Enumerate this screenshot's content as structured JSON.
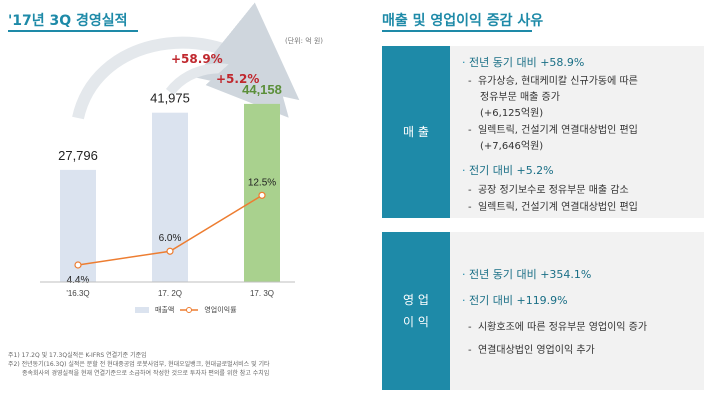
{
  "left": {
    "title": "'17년 3Q 경영실적",
    "unit": "(단위: 억 원)",
    "footnotes": [
      "주1) 17.2Q 및 17.3Q실적은 K-IFRS 연결기준 기준임",
      "주2) 전년동기(16.3Q) 실적은 분할 전 현대중공업 로봇사업부, 현대오일뱅크, 현대글로벌서비스 및 기타",
      "종속회사의 경영실적을 현재 연결기준으로 소급하여 작성한 것으로 투자자 편의를 위한 참고 수치임"
    ]
  },
  "chart_data": {
    "type": "bar",
    "categories": [
      "'16.3Q",
      "17. 2Q",
      "17. 3Q"
    ],
    "series": [
      {
        "name": "매출액",
        "values": [
          27796,
          41975,
          44158
        ],
        "labels": [
          "27,796",
          "41,975",
          "44,158"
        ]
      },
      {
        "name": "영업이익률",
        "values": [
          4.4,
          6.0,
          12.5
        ],
        "labels": [
          "4.4%",
          "6.0%",
          "12.5%"
        ]
      }
    ],
    "growth_labels": [
      "+58.9%",
      "+5.2%"
    ],
    "colors": {
      "bar": "#dbe3ef",
      "bar_highlight": "#a9d18e",
      "line": "#ed7d31",
      "growth": "#c0282e",
      "last_value": "#5b8f3a"
    }
  },
  "right": {
    "title": "매출 및 영업이익 증감 사유",
    "sales": {
      "label": "매 출",
      "h1": "전년 동기 대비  +58.9%",
      "s1": "유가상승, 현대케미칼 신규가동에 따른",
      "s1b": "정유부문 매출 증가",
      "s1c": "(+6,125억원)",
      "s2": "일렉트릭, 건설기계 연결대상법인 편입",
      "s2b": "(+7,646억원)",
      "h2": "전기 대비  +5.2%",
      "s3": "공장 정기보수로 정유부문 매출 감소",
      "s4": "일렉트릭, 건설기계 연결대상법인 편입"
    },
    "profit": {
      "label1": "영  업",
      "label2": "이  익",
      "h1": "전년 동기 대비  +354.1%",
      "h2": "전기 대비  +119.9%",
      "s1": "시황호조에 따른 정유부문 영업이익 증가",
      "s2": "연결대상법인 영업이익 추가"
    }
  }
}
